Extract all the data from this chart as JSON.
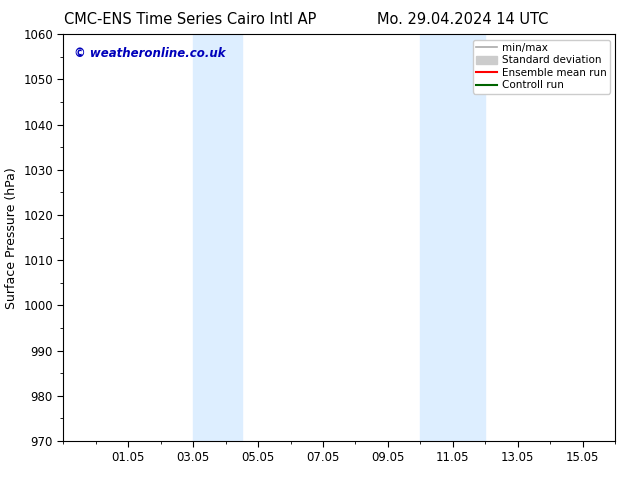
{
  "title_left": "CMC-ENS Time Series Cairo Intl AP",
  "title_right": "Mo. 29.04.2024 14 UTC",
  "ylabel": "Surface Pressure (hPa)",
  "ylim": [
    970,
    1060
  ],
  "yticks": [
    970,
    980,
    990,
    1000,
    1010,
    1020,
    1030,
    1040,
    1050,
    1060
  ],
  "xlim": [
    0.0,
    17.0
  ],
  "xtick_labels": [
    "01.05",
    "03.05",
    "05.05",
    "07.05",
    "09.05",
    "11.05",
    "13.05",
    "15.05"
  ],
  "xtick_positions": [
    2.0,
    4.0,
    6.0,
    8.0,
    10.0,
    12.0,
    14.0,
    16.0
  ],
  "shaded_bands": [
    {
      "xmin": 4.0,
      "xmax": 5.5
    },
    {
      "xmin": 11.0,
      "xmax": 13.0
    }
  ],
  "shaded_color": "#ddeeff",
  "background_color": "#ffffff",
  "watermark_text": "© weatheronline.co.uk",
  "watermark_color": "#0000bb",
  "legend_entries": [
    {
      "label": "min/max",
      "color": "#aaaaaa",
      "lw": 1.2
    },
    {
      "label": "Standard deviation",
      "color": "#cccccc",
      "lw": 5
    },
    {
      "label": "Ensemble mean run",
      "color": "#ff0000",
      "lw": 1.5
    },
    {
      "label": "Controll run",
      "color": "#006400",
      "lw": 1.5
    }
  ],
  "title_fontsize": 10.5,
  "tick_fontsize": 8.5,
  "ylabel_fontsize": 9,
  "watermark_fontsize": 8.5,
  "legend_fontsize": 7.5
}
